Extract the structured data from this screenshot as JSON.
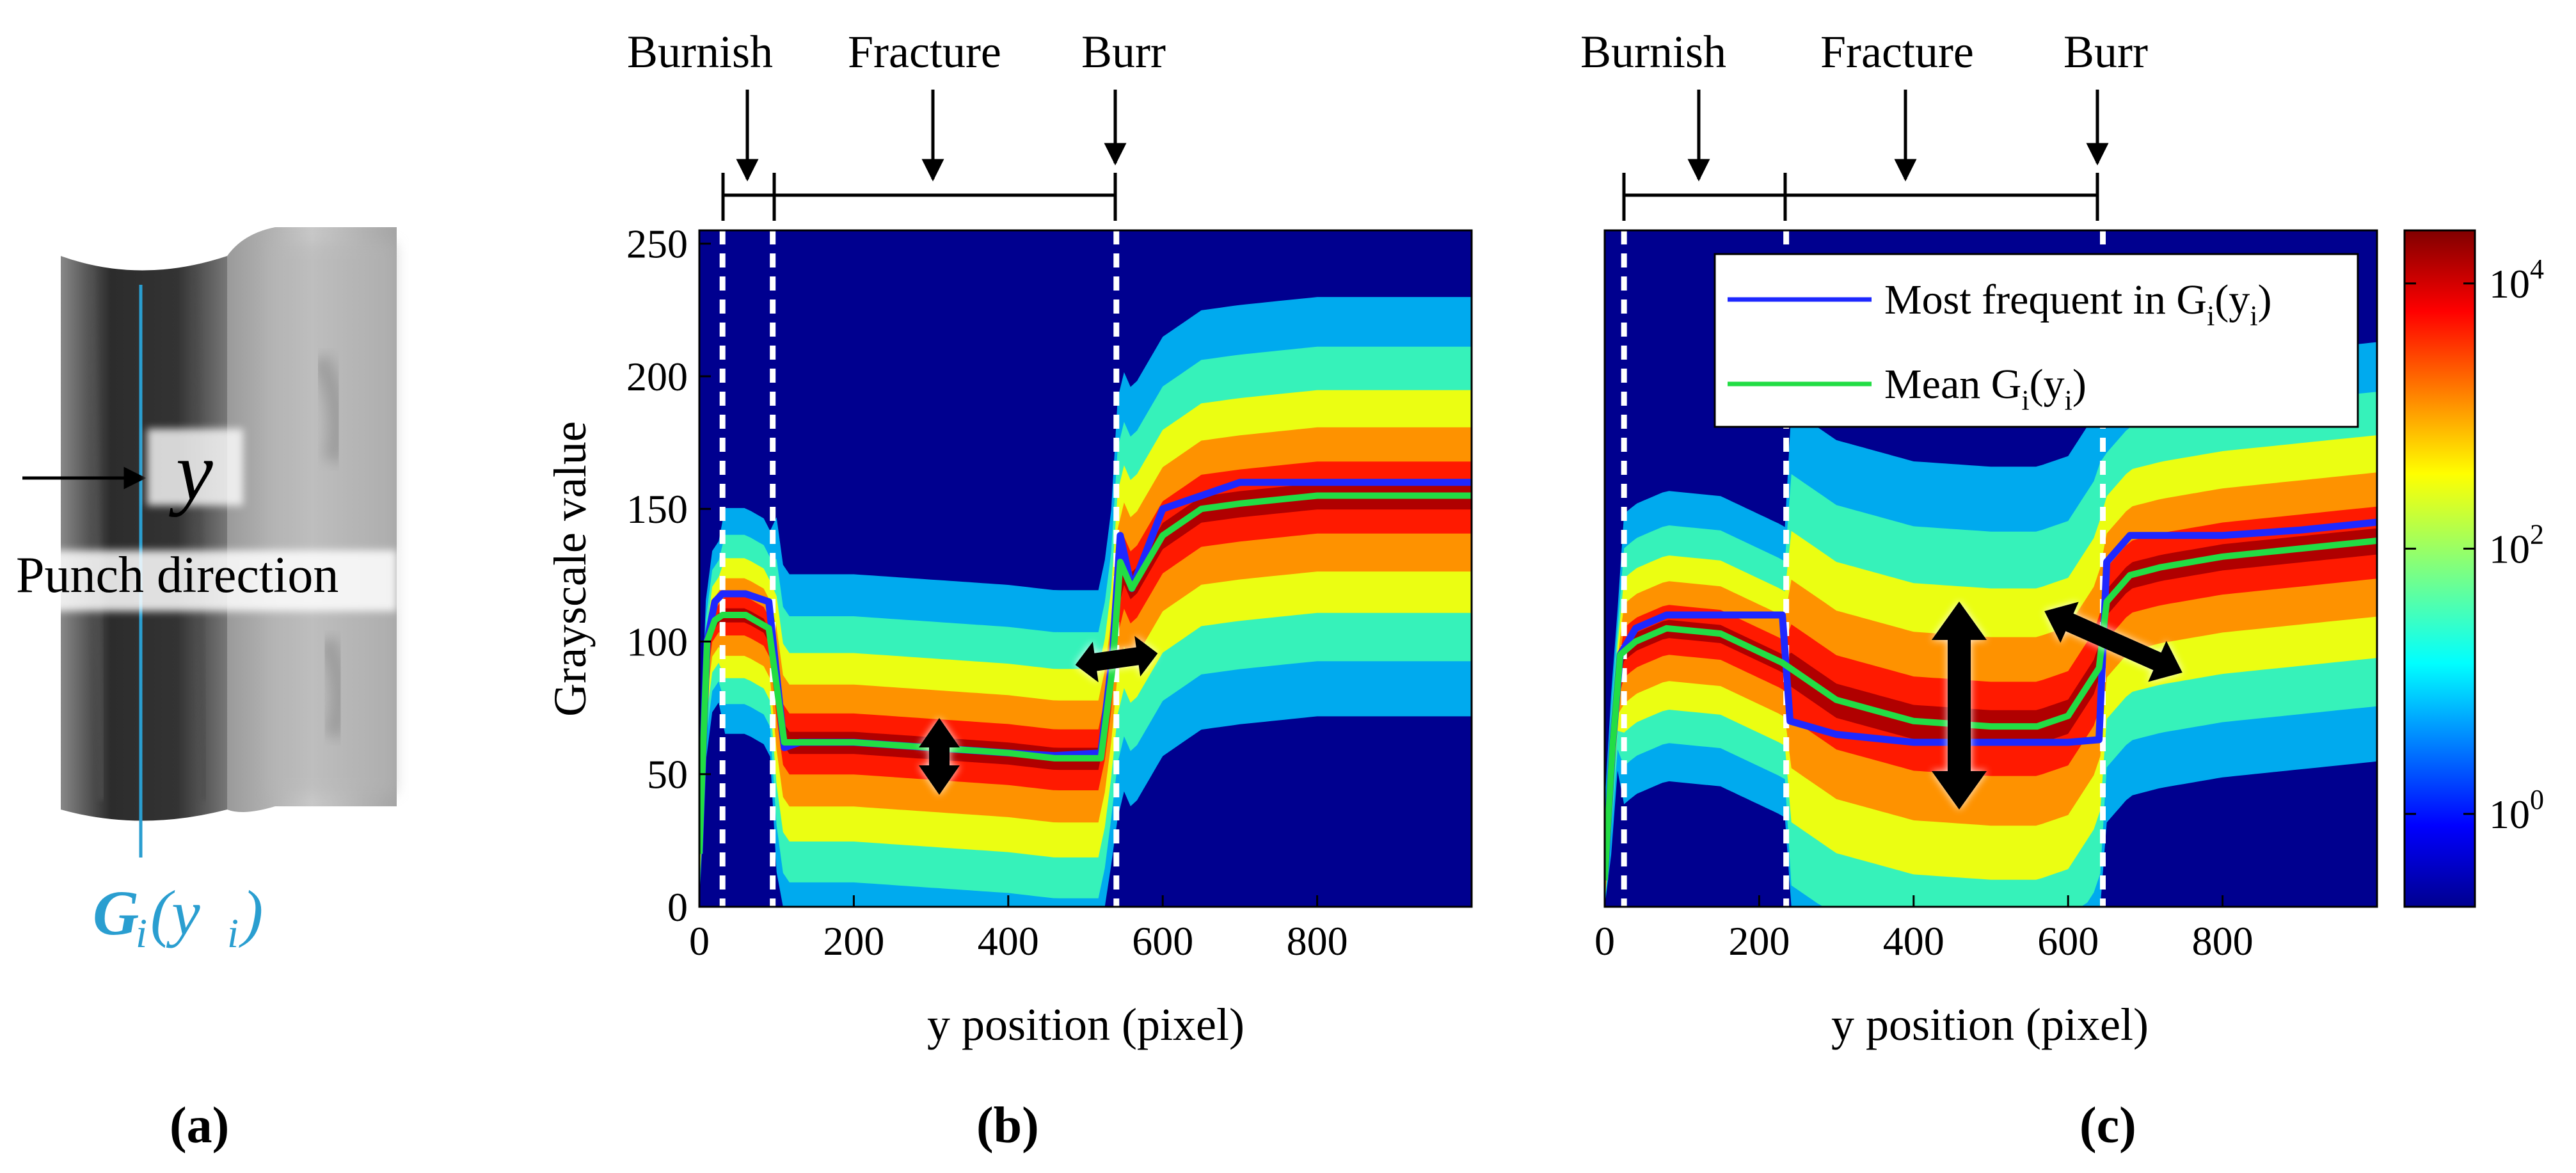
{
  "panel_a": {
    "y_label": "y",
    "direction_label": "Punch direction",
    "gi_label_main": "G",
    "gi_label_sub": "i",
    "gi_label_open": "(y",
    "gi_label_sub2": "i",
    "gi_label_close": ")",
    "line_color": "#2a9ed0",
    "panel_label": "(a)"
  },
  "panel_b": {
    "regions": [
      "Burnish",
      "Fracture",
      "Burr"
    ],
    "panel_label": "(b)"
  },
  "panel_c": {
    "regions": [
      "Burnish",
      "Fracture",
      "Burr"
    ],
    "panel_label": "(c)",
    "legend": {
      "mode_main": "Most frequent in G",
      "mode_s1": "i",
      "mode_mid": "(y",
      "mode_s2": "i",
      "mode_end": ")",
      "mean_main": "Mean G",
      "mean_s1": "i",
      "mean_mid": "(y",
      "mean_s2": "i",
      "mean_end": ")"
    }
  },
  "axes": {
    "ylabel": "Grayscale value",
    "xlabel": "y position (pixel)"
  },
  "colorbar": {
    "ticks": [
      {
        "base": "10",
        "exp": "4",
        "value": 10000
      },
      {
        "base": "10",
        "exp": "2",
        "value": 100
      },
      {
        "base": "10",
        "exp": "0",
        "value": 1
      }
    ],
    "scale": "log",
    "colormap": "jet"
  },
  "colors": {
    "mode_line": "#1e28ff",
    "mean_line": "#22dd44",
    "background": "#00008f",
    "dashed_markers": "#ffffff"
  },
  "chart_data": [
    {
      "type": "heatmap",
      "panel": "b",
      "title": "",
      "xlabel": "y position (pixel)",
      "ylabel": "Grayscale value",
      "xlim": [
        0,
        1000
      ],
      "ylim": [
        0,
        255
      ],
      "x_ticks": [
        0,
        200,
        400,
        600,
        800
      ],
      "y_ticks": [
        0,
        50,
        100,
        150,
        200,
        250
      ],
      "region_boundaries": [
        30,
        95,
        540
      ],
      "region_labels": [
        "Burnish",
        "Fracture",
        "Burr"
      ],
      "series": [
        {
          "name": "Most frequent in Gi(yi)",
          "x": [
            0,
            10,
            20,
            30,
            60,
            90,
            110,
            130,
            200,
            300,
            400,
            460,
            520,
            535,
            545,
            560,
            600,
            650,
            700,
            800,
            900,
            1000
          ],
          "values": [
            20,
            100,
            115,
            118,
            118,
            115,
            60,
            62,
            62,
            60,
            58,
            57,
            58,
            95,
            140,
            120,
            150,
            155,
            160,
            160,
            160,
            160
          ]
        },
        {
          "name": "Mean Gi(yi)",
          "x": [
            0,
            10,
            20,
            30,
            60,
            90,
            110,
            130,
            200,
            300,
            400,
            460,
            520,
            535,
            545,
            560,
            600,
            650,
            700,
            800,
            900,
            1000
          ],
          "values": [
            20,
            100,
            108,
            110,
            110,
            105,
            62,
            62,
            62,
            60,
            58,
            56,
            56,
            90,
            130,
            120,
            140,
            150,
            152,
            155,
            155,
            155
          ]
        }
      ]
    },
    {
      "type": "heatmap",
      "panel": "c",
      "title": "",
      "xlabel": "y position (pixel)",
      "ylabel": "",
      "xlim": [
        0,
        1000
      ],
      "ylim": [
        0,
        255
      ],
      "x_ticks": [
        0,
        200,
        400,
        600,
        800
      ],
      "y_ticks": [],
      "region_boundaries": [
        25,
        235,
        645
      ],
      "region_labels": [
        "Burnish",
        "Fracture",
        "Burr"
      ],
      "series": [
        {
          "name": "Most frequent in Gi(yi)",
          "x": [
            0,
            10,
            20,
            40,
            80,
            150,
            230,
            240,
            300,
            400,
            500,
            600,
            640,
            650,
            680,
            720,
            800,
            900,
            1000
          ],
          "values": [
            10,
            60,
            95,
            105,
            110,
            110,
            110,
            70,
            65,
            62,
            62,
            62,
            63,
            130,
            140,
            140,
            140,
            142,
            145
          ]
        },
        {
          "name": "Mean Gi(yi)",
          "x": [
            0,
            10,
            20,
            40,
            80,
            150,
            230,
            300,
            400,
            500,
            560,
            600,
            640,
            650,
            680,
            720,
            800,
            900,
            1000
          ],
          "values": [
            10,
            60,
            95,
            100,
            105,
            103,
            92,
            78,
            70,
            68,
            68,
            72,
            90,
            115,
            125,
            128,
            132,
            135,
            138
          ]
        }
      ]
    }
  ]
}
